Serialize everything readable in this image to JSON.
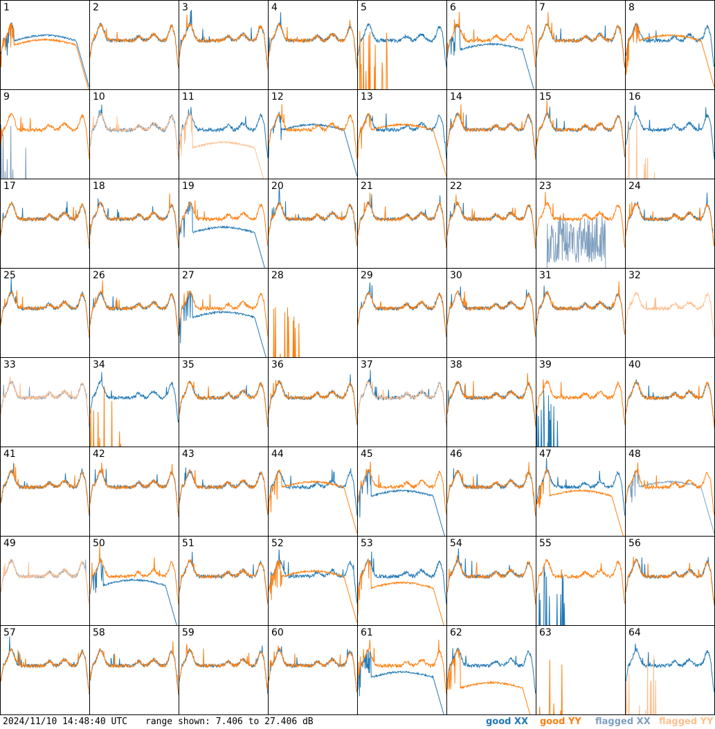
{
  "footer": {
    "timestamp": "2024/11/10 14:48:40 UTC",
    "range_text": "range shown: 7.406 to 27.406 dB"
  },
  "legend": [
    {
      "label": "good XX",
      "color": "#1f77b4"
    },
    {
      "label": "good YY",
      "color": "#ff7f0e"
    },
    {
      "label": "flagged XX",
      "color": "#7f9fbf"
    },
    {
      "label": "flagged YY",
      "color": "#ffbf8f"
    }
  ],
  "chart_data": {
    "type": "line",
    "ylim": [
      7.406,
      27.406
    ],
    "grid": "8x8",
    "legend_placement": "bottom-right",
    "tiles": [
      {
        "id": "1",
        "xx": "good",
        "yy": "good",
        "xx_shape": "hump",
        "yy_shape": "hump",
        "xx_level": 0.55,
        "yy_level": 0.5
      },
      {
        "id": "2",
        "xx": "good",
        "yy": "good",
        "xx_shape": "normal",
        "yy_shape": "normal"
      },
      {
        "id": "3",
        "xx": "good",
        "yy": "good",
        "xx_shape": "normal",
        "yy_shape": "normal"
      },
      {
        "id": "4",
        "xx": "good",
        "yy": "good",
        "xx_shape": "normal",
        "yy_shape": "normal"
      },
      {
        "id": "5",
        "xx": "good",
        "yy": "good",
        "xx_shape": "normal",
        "yy_shape": "spike"
      },
      {
        "id": "6",
        "xx": "good",
        "yy": "good",
        "xx_shape": "hump",
        "yy_shape": "normal",
        "xx_level": 0.45
      },
      {
        "id": "7",
        "xx": "good",
        "yy": "good",
        "xx_shape": "normal",
        "yy_shape": "normal"
      },
      {
        "id": "8",
        "xx": "good",
        "yy": "good",
        "xx_shape": "normal",
        "yy_shape": "hump",
        "yy_level": 0.55
      },
      {
        "id": "9",
        "xx": "flagged",
        "yy": "good",
        "xx_shape": "spike",
        "yy_shape": "normal"
      },
      {
        "id": "10",
        "xx": "good",
        "yy": "flagged",
        "xx_shape": "normal",
        "yy_shape": "normal"
      },
      {
        "id": "11",
        "xx": "good",
        "yy": "flagged",
        "xx_shape": "normal",
        "yy_shape": "hump",
        "yy_level": 0.35
      },
      {
        "id": "12",
        "xx": "good",
        "yy": "good",
        "xx_shape": "hump",
        "yy_shape": "normal",
        "xx_level": 0.55
      },
      {
        "id": "13",
        "xx": "good",
        "yy": "good",
        "xx_shape": "normal",
        "yy_shape": "hump",
        "yy_level": 0.55
      },
      {
        "id": "14",
        "xx": "good",
        "yy": "good",
        "xx_shape": "normal",
        "yy_shape": "normal"
      },
      {
        "id": "15",
        "xx": "good",
        "yy": "good",
        "xx_shape": "normal",
        "yy_shape": "normal"
      },
      {
        "id": "16",
        "xx": "good",
        "yy": "flagged",
        "xx_shape": "normal",
        "yy_shape": "spike"
      },
      {
        "id": "17",
        "xx": "good",
        "yy": "good",
        "xx_shape": "normal",
        "yy_shape": "normal"
      },
      {
        "id": "18",
        "xx": "good",
        "yy": "good",
        "xx_shape": "normal",
        "yy_shape": "normal"
      },
      {
        "id": "19",
        "xx": "good",
        "yy": "good",
        "xx_shape": "hump",
        "yy_shape": "normal",
        "xx_level": 0.4
      },
      {
        "id": "20",
        "xx": "good",
        "yy": "good",
        "xx_shape": "normal",
        "yy_shape": "normal"
      },
      {
        "id": "21",
        "xx": "good",
        "yy": "good",
        "xx_shape": "normal",
        "yy_shape": "normal"
      },
      {
        "id": "22",
        "xx": "good",
        "yy": "good",
        "xx_shape": "normal",
        "yy_shape": "normal"
      },
      {
        "id": "23",
        "xx": "flagged",
        "yy": "good",
        "xx_shape": "noise",
        "yy_shape": "normal"
      },
      {
        "id": "24",
        "xx": "good",
        "yy": "good",
        "xx_shape": "normal",
        "yy_shape": "normal"
      },
      {
        "id": "25",
        "xx": "good",
        "yy": "good",
        "xx_shape": "normal",
        "yy_shape": "normal"
      },
      {
        "id": "26",
        "xx": "good",
        "yy": "good",
        "xx_shape": "normal",
        "yy_shape": "normal"
      },
      {
        "id": "27",
        "xx": "good",
        "yy": "good",
        "xx_shape": "hump",
        "yy_shape": "normal",
        "xx_level": 0.45
      },
      {
        "id": "28",
        "xx": "good",
        "yy": "good",
        "xx_shape": "flat",
        "yy_shape": "spike"
      },
      {
        "id": "29",
        "xx": "good",
        "yy": "good",
        "xx_shape": "normal",
        "yy_shape": "normal"
      },
      {
        "id": "30",
        "xx": "good",
        "yy": "good",
        "xx_shape": "normal",
        "yy_shape": "normal"
      },
      {
        "id": "31",
        "xx": "good",
        "yy": "good",
        "xx_shape": "normal",
        "yy_shape": "normal"
      },
      {
        "id": "32",
        "xx": "good",
        "yy": "flagged",
        "xx_shape": "flat",
        "yy_shape": "normal"
      },
      {
        "id": "33",
        "xx": "flagged",
        "yy": "flagged",
        "xx_shape": "normal",
        "yy_shape": "normal"
      },
      {
        "id": "34",
        "xx": "good",
        "yy": "good",
        "xx_shape": "normal",
        "yy_shape": "spike"
      },
      {
        "id": "35",
        "xx": "good",
        "yy": "good",
        "xx_shape": "normal",
        "yy_shape": "normal"
      },
      {
        "id": "36",
        "xx": "good",
        "yy": "good",
        "xx_shape": "normal",
        "yy_shape": "normal"
      },
      {
        "id": "37",
        "xx": "good",
        "yy": "flagged",
        "xx_shape": "normal",
        "yy_shape": "normal"
      },
      {
        "id": "38",
        "xx": "good",
        "yy": "good",
        "xx_shape": "normal",
        "yy_shape": "normal"
      },
      {
        "id": "39",
        "xx": "good",
        "yy": "good",
        "xx_shape": "spike",
        "yy_shape": "normal"
      },
      {
        "id": "40",
        "xx": "good",
        "yy": "good",
        "xx_shape": "normal",
        "yy_shape": "normal"
      },
      {
        "id": "41",
        "xx": "good",
        "yy": "good",
        "xx_shape": "normal",
        "yy_shape": "normal"
      },
      {
        "id": "42",
        "xx": "good",
        "yy": "good",
        "xx_shape": "normal",
        "yy_shape": "normal"
      },
      {
        "id": "43",
        "xx": "good",
        "yy": "good",
        "xx_shape": "normal",
        "yy_shape": "normal"
      },
      {
        "id": "44",
        "xx": "good",
        "yy": "good",
        "xx_shape": "normal",
        "yy_shape": "hump",
        "yy_level": 0.55
      },
      {
        "id": "45",
        "xx": "good",
        "yy": "good",
        "xx_shape": "hump",
        "yy_shape": "normal",
        "xx_level": 0.45
      },
      {
        "id": "46",
        "xx": "good",
        "yy": "good",
        "xx_shape": "normal",
        "yy_shape": "normal"
      },
      {
        "id": "47",
        "xx": "good",
        "yy": "good",
        "xx_shape": "normal",
        "yy_shape": "hump",
        "yy_level": 0.45
      },
      {
        "id": "48",
        "xx": "flagged",
        "yy": "good",
        "xx_shape": "hump",
        "yy_shape": "normal",
        "xx_level": 0.55
      },
      {
        "id": "49",
        "xx": "flagged",
        "yy": "flagged",
        "xx_shape": "normal",
        "yy_shape": "normal"
      },
      {
        "id": "50",
        "xx": "good",
        "yy": "good",
        "xx_shape": "hump",
        "yy_shape": "normal",
        "xx_level": 0.45
      },
      {
        "id": "51",
        "xx": "good",
        "yy": "good",
        "xx_shape": "normal",
        "yy_shape": "normal"
      },
      {
        "id": "52",
        "xx": "good",
        "yy": "good",
        "xx_shape": "normal",
        "yy_shape": "hump",
        "yy_level": 0.55
      },
      {
        "id": "53",
        "xx": "good",
        "yy": "good",
        "xx_shape": "normal",
        "yy_shape": "hump",
        "yy_level": 0.42
      },
      {
        "id": "54",
        "xx": "good",
        "yy": "good",
        "xx_shape": "normal",
        "yy_shape": "normal"
      },
      {
        "id": "55",
        "xx": "good",
        "yy": "good",
        "xx_shape": "spike",
        "yy_shape": "normal"
      },
      {
        "id": "56",
        "xx": "good",
        "yy": "good",
        "xx_shape": "normal",
        "yy_shape": "normal"
      },
      {
        "id": "57",
        "xx": "good",
        "yy": "good",
        "xx_shape": "normal",
        "yy_shape": "normal"
      },
      {
        "id": "58",
        "xx": "good",
        "yy": "good",
        "xx_shape": "normal",
        "yy_shape": "normal"
      },
      {
        "id": "59",
        "xx": "good",
        "yy": "good",
        "xx_shape": "normal",
        "yy_shape": "normal"
      },
      {
        "id": "60",
        "xx": "good",
        "yy": "good",
        "xx_shape": "normal",
        "yy_shape": "normal"
      },
      {
        "id": "61",
        "xx": "good",
        "yy": "good",
        "xx_shape": "hump",
        "yy_shape": "normal",
        "xx_level": 0.42
      },
      {
        "id": "62",
        "xx": "good",
        "yy": "good",
        "xx_shape": "normal",
        "yy_shape": "hump",
        "yy_level": 0.3
      },
      {
        "id": "63",
        "xx": "good",
        "yy": "good",
        "xx_shape": "flat",
        "yy_shape": "spike"
      },
      {
        "id": "64",
        "xx": "good",
        "yy": "flagged",
        "xx_shape": "normal",
        "yy_shape": "spike"
      }
    ]
  }
}
